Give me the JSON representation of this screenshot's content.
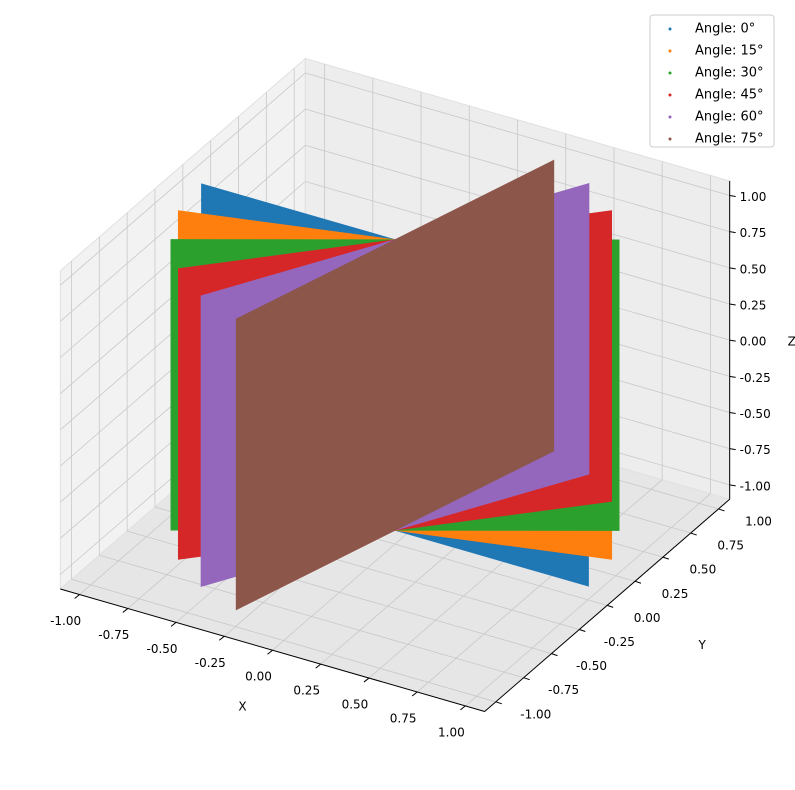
{
  "chart_data": {
    "type": "scatter3d",
    "xlabel": "X",
    "ylabel": "Y",
    "zlabel": "Z",
    "xlim": [
      -1.1,
      1.1
    ],
    "ylim": [
      -1.1,
      1.1
    ],
    "zlim": [
      -1.1,
      1.1
    ],
    "xticks": [
      {
        "value": -1,
        "label": "-1.00"
      },
      -0.75,
      {
        "value": -0.5,
        "label": "-0.50"
      },
      -0.25,
      {
        "value": 0,
        "label": "0.00"
      },
      0.25,
      {
        "value": 0.5,
        "label": "0.50"
      },
      0.75,
      {
        "value": 1,
        "label": "1.00"
      }
    ],
    "yticks": [
      {
        "value": -1,
        "label": "-1.00"
      },
      -0.75,
      {
        "value": -0.5,
        "label": "-0.50"
      },
      -0.25,
      {
        "value": 0,
        "label": "0.00"
      },
      0.25,
      {
        "value": 0.5,
        "label": "0.50"
      },
      0.75,
      {
        "value": 1,
        "label": "1.00"
      }
    ],
    "zticks": [
      {
        "value": -1,
        "label": "-1.00"
      },
      -0.75,
      {
        "value": -0.5,
        "label": "-0.50"
      },
      -0.25,
      {
        "value": 0,
        "label": "0.00"
      },
      0.25,
      {
        "value": 0.5,
        "label": "0.50"
      },
      0.75,
      {
        "value": 1,
        "label": "1.00"
      }
    ],
    "grid": true,
    "legend": "upper right",
    "series": [
      {
        "name": "Angle: 0°",
        "color": "#1f77b4",
        "x": [
          1,
          -1,
          -1,
          1
        ],
        "y": [
          0,
          0,
          0,
          0
        ],
        "z": [
          1,
          1,
          -1,
          -1
        ]
      },
      {
        "name": "Angle: 15°",
        "color": "#ff7f0e",
        "x": [
          0.97,
          -0.97,
          -0.97,
          0.97
        ],
        "y": [
          0.26,
          -0.26,
          -0.26,
          0.26
        ],
        "z": [
          1,
          1,
          -1,
          -1
        ]
      },
      {
        "name": "Angle: 30°",
        "color": "#2ca02c",
        "x": [
          0.87,
          -0.87,
          -0.87,
          0.87
        ],
        "y": [
          0.5,
          -0.5,
          -0.5,
          0.5
        ],
        "z": [
          1,
          1,
          -1,
          -1
        ]
      },
      {
        "name": "Angle: 45°",
        "color": "#d62728",
        "x": [
          0.71,
          -0.71,
          -0.71,
          0.71
        ],
        "y": [
          0.71,
          -0.71,
          -0.71,
          0.71
        ],
        "z": [
          1,
          1,
          -1,
          -1
        ]
      },
      {
        "name": "Angle: 60°",
        "color": "#9467bd",
        "x": [
          0.5,
          -0.5,
          -0.5,
          0.5
        ],
        "y": [
          0.87,
          -0.87,
          -0.87,
          0.87
        ],
        "z": [
          1,
          1,
          -1,
          -1
        ]
      },
      {
        "name": "Angle: 75°",
        "color": "#8c564b",
        "x": [
          0.26,
          -0.26,
          -0.26,
          0.26
        ],
        "y": [
          0.97,
          -0.97,
          -0.97,
          0.97
        ],
        "z": [
          1,
          1,
          -1,
          -1
        ]
      }
    ]
  }
}
